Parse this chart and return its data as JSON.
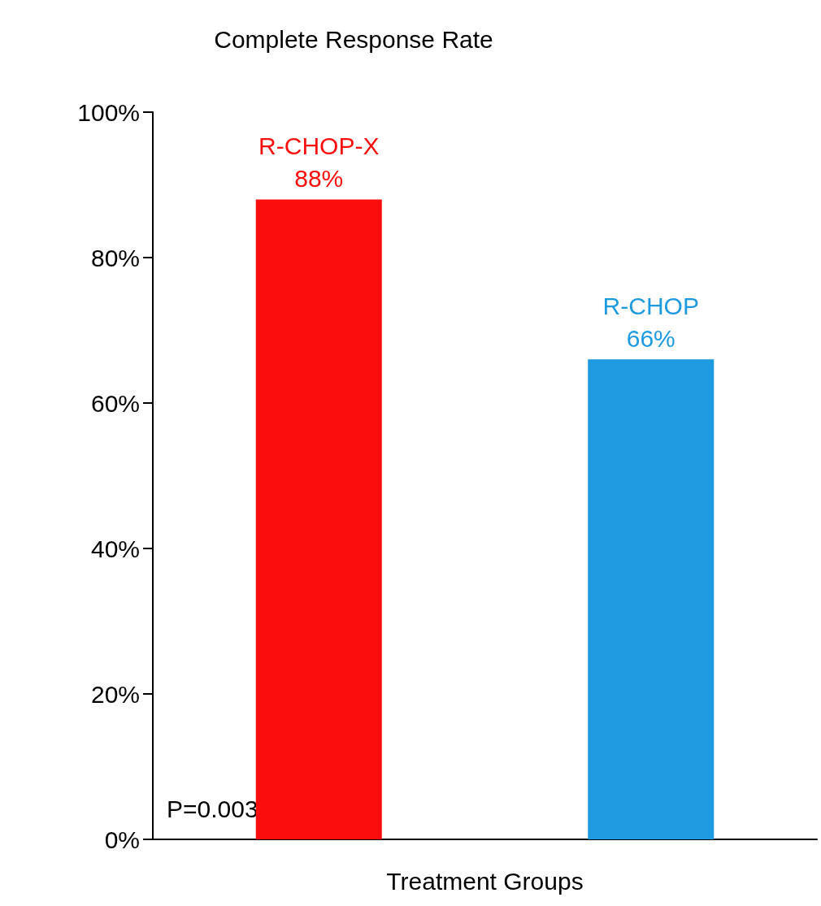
{
  "chart_data": {
    "type": "bar",
    "title": "Complete Response Rate",
    "xlabel": "Treatment Groups",
    "categories": [
      "R-CHOP-X",
      "R-CHOP"
    ],
    "values": [
      88,
      66
    ],
    "colors": [
      "#fc0d0d",
      "#1e9ae0"
    ],
    "value_labels": [
      "88%",
      "66%"
    ],
    "ylim": [
      0,
      100
    ],
    "yticks": [
      {
        "value": 0,
        "label": "0%"
      },
      {
        "value": 20,
        "label": "20%"
      },
      {
        "value": 40,
        "label": "40%"
      },
      {
        "value": 60,
        "label": "60%"
      },
      {
        "value": 80,
        "label": "80%"
      },
      {
        "value": 100,
        "label": "100%"
      }
    ],
    "grid": false,
    "annotations": [
      "P=0.003"
    ]
  }
}
